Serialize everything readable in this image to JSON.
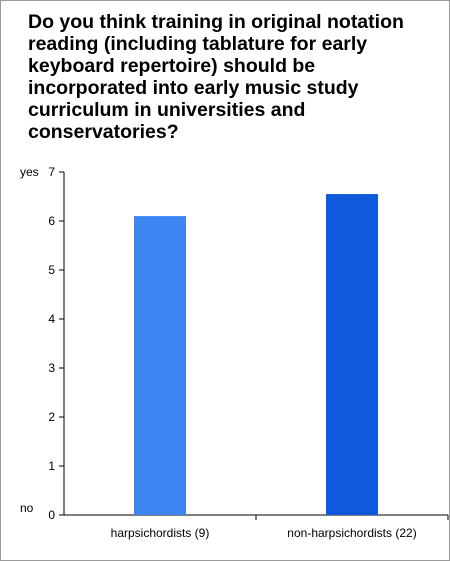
{
  "chart_data": {
    "type": "bar",
    "title": "Do you think training in original notation reading (including tablature for early keyboard repertoire) should be incorporated into early music study curriculum in universities and conservatories?",
    "categories": [
      "harpsichordists (9)",
      "non-harpsichordists (22)"
    ],
    "values": [
      6.1,
      6.55
    ],
    "bar_colors": [
      "#3d86f2",
      "#1059dc"
    ],
    "ylim": [
      0,
      7
    ],
    "yticks": [
      "0",
      "1",
      "2",
      "3",
      "4",
      "5",
      "6",
      "7"
    ],
    "y_top_label": "yes",
    "y_bottom_label": "no",
    "grid": false,
    "legend": "none"
  }
}
